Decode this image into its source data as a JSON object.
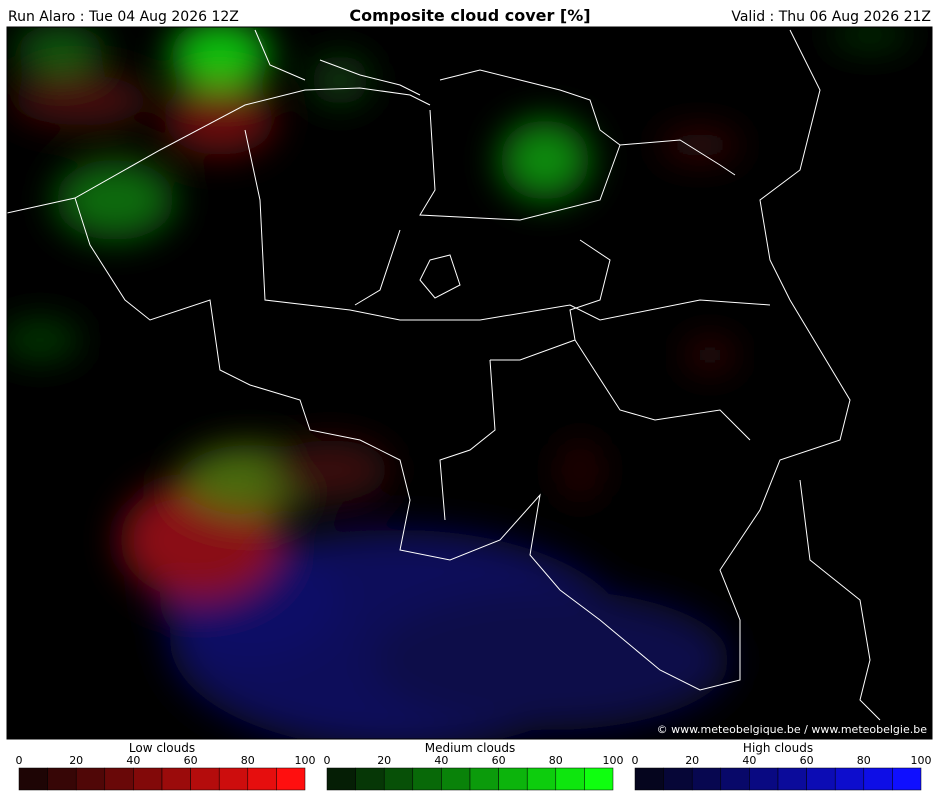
{
  "header": {
    "run": "Run Alaro : Tue 04 Aug 2026 12Z",
    "title": "Composite cloud cover [%]",
    "valid": "Valid : Thu 06 Aug 2026 21Z"
  },
  "map": {
    "credit": "© www.meteobelgique.be / www.meteobelgie.be"
  },
  "legend": [
    {
      "title": "Low clouds",
      "ticks": [
        0,
        20,
        40,
        60,
        80,
        100
      ]
    },
    {
      "title": "Medium clouds",
      "ticks": [
        0,
        20,
        40,
        60,
        80,
        100
      ]
    },
    {
      "title": "High clouds",
      "ticks": [
        0,
        20,
        40,
        60,
        80,
        100
      ]
    }
  ]
}
